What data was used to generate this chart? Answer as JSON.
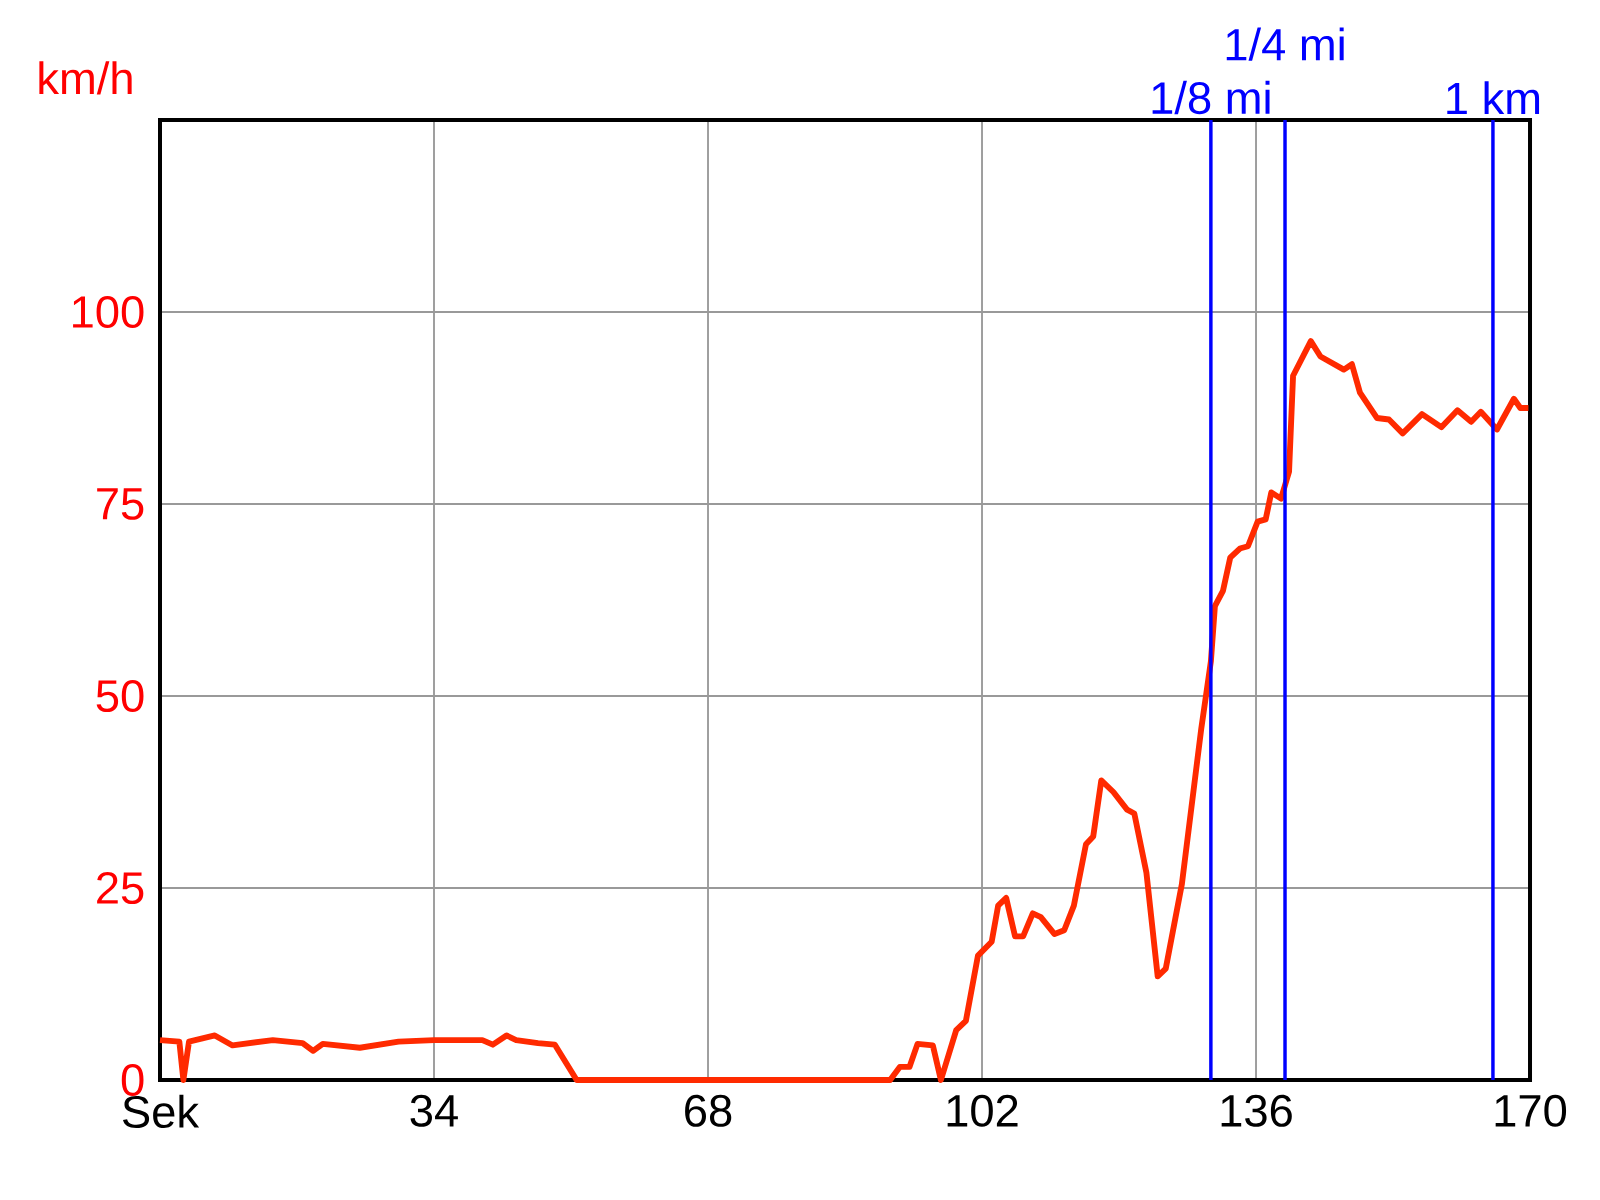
{
  "chart_data": {
    "type": "line",
    "ylabel": "km/h",
    "xlim": [
      0,
      170
    ],
    "ylim": [
      0,
      125
    ],
    "xticks": [
      {
        "value": 0,
        "label": "Sek"
      },
      34,
      68,
      102,
      136,
      170
    ],
    "yticks": [
      0,
      25,
      50,
      75,
      100
    ],
    "grid": true,
    "marker": "none",
    "line_style": "solid",
    "series": [
      {
        "color": "#ff2a00",
        "x": [
          0,
          2.4,
          2.9,
          3.6,
          6.8,
          9,
          14,
          17.7,
          19,
          20.2,
          24.8,
          29.6,
          34,
          40,
          41.3,
          43,
          44.2,
          46.9,
          49,
          51.7,
          90.6,
          91.8,
          93,
          94,
          95.9,
          96.9,
          98.8,
          100,
          101.5,
          103.2,
          104,
          105,
          106.1,
          107.1,
          108.3,
          109.3,
          111,
          112.2,
          113.4,
          114.9,
          115.8,
          116.8,
          118.3,
          120,
          120.9,
          122.4,
          123.8,
          124.8,
          126.8,
          129.2,
          130.4,
          130.9,
          131.9,
          132.8,
          134,
          135,
          136.2,
          137.2,
          137.9,
          139.1,
          140.1,
          140.6,
          142.8,
          144,
          146.9,
          147.9,
          148.9,
          151,
          152.5,
          154.2,
          156.6,
          159,
          161,
          162.7,
          163.9,
          165.9,
          168,
          168.8,
          169.8
        ],
        "values": [
          5.2,
          5,
          0,
          5,
          5.8,
          4.5,
          5.2,
          4.8,
          3.8,
          4.7,
          4.2,
          5,
          5.2,
          5.2,
          4.6,
          5.8,
          5.2,
          4.8,
          4.6,
          0,
          0,
          1.7,
          1.7,
          4.7,
          4.5,
          0,
          6.5,
          7.7,
          16.2,
          18,
          22.7,
          23.7,
          18.7,
          18.7,
          21.7,
          21.2,
          19,
          19.5,
          22.7,
          30.7,
          31.7,
          39,
          37.5,
          35.2,
          34.7,
          27,
          13.5,
          14.5,
          25.5,
          45.7,
          54.5,
          61.7,
          63.7,
          68,
          69.2,
          69.5,
          72.7,
          73,
          76.5,
          75.7,
          79.2,
          91.7,
          96.2,
          94.2,
          92.5,
          93.2,
          89.5,
          86.2,
          86,
          84.2,
          86.7,
          85,
          87.2,
          85.7,
          87,
          84.7,
          88.7,
          87.5,
          87.5
        ]
      }
    ],
    "ref_lines": [
      {
        "axis": "x",
        "value": 130.4,
        "label": "1/8 mi",
        "color": "#0000ff"
      },
      {
        "axis": "x",
        "value": 139.6,
        "label": "1/4 mi",
        "color": "#0000ff"
      },
      {
        "axis": "x",
        "value": 165.4,
        "label": "1 km",
        "color": "#0000ff"
      }
    ]
  }
}
